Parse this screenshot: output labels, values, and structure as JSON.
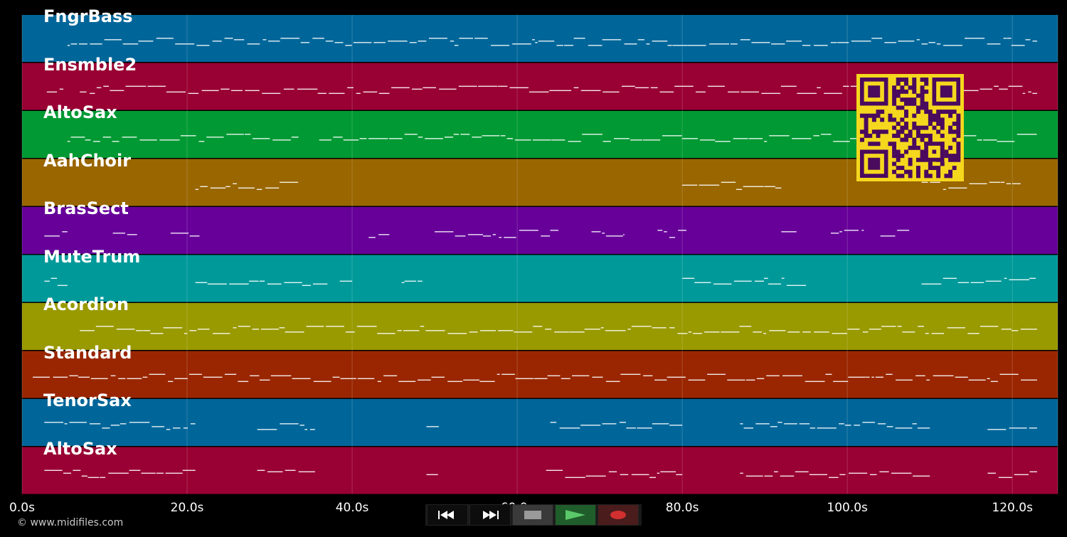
{
  "app": {
    "copyright": "© www.midifiles.com"
  },
  "timeline": {
    "max_seconds": 125.5,
    "tick_labels": [
      "0.0s",
      "20.0s",
      "40.0s",
      "60.0s",
      "80.0s",
      "100.0s",
      "120.0s"
    ],
    "tick_values": [
      0,
      20,
      40,
      60,
      80,
      100,
      120
    ]
  },
  "tracks": [
    {
      "label": "FngrBass",
      "color": "#006699"
    },
    {
      "label": "Ensmble2",
      "color": "#990033"
    },
    {
      "label": "AltoSax",
      "color": "#009933"
    },
    {
      "label": "AahChoir",
      "color": "#996600"
    },
    {
      "label": "BrasSect",
      "color": "#660099"
    },
    {
      "label": "MuteTrum",
      "color": "#009999"
    },
    {
      "label": "Acordion",
      "color": "#999900"
    },
    {
      "label": "Standard",
      "color": "#992600"
    },
    {
      "label": "TenorSax",
      "color": "#006699"
    },
    {
      "label": "AltoSax",
      "color": "#990033"
    }
  ],
  "transport": {
    "buttons": [
      {
        "name": "rewind-button",
        "icon": "rewind-icon"
      },
      {
        "name": "fast-forward-button",
        "icon": "fast-forward-icon"
      },
      {
        "name": "stop-button",
        "icon": "stop-icon"
      },
      {
        "name": "play-button",
        "icon": "play-icon"
      },
      {
        "name": "record-button",
        "icon": "record-icon"
      }
    ]
  },
  "qr_code": {
    "icon": "qr-code-icon",
    "fg_color": "#f5d71e",
    "bg_color": "#4a0a5e"
  }
}
